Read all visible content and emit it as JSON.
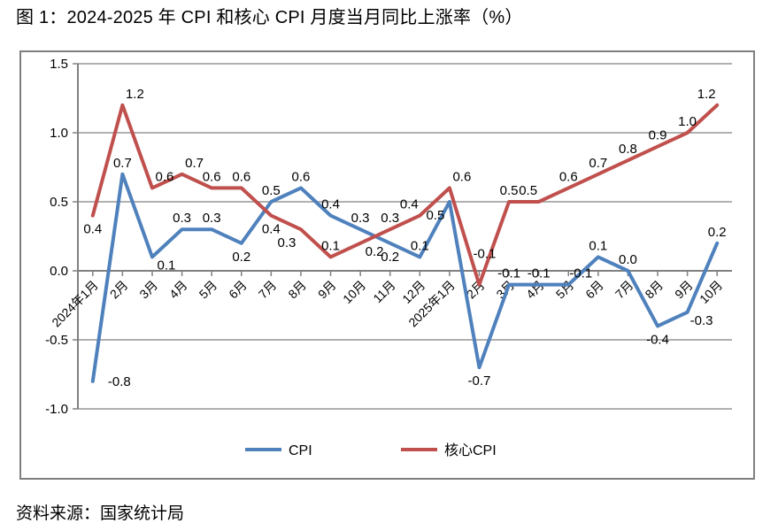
{
  "page": {
    "source": "资料来源：国家统计局"
  },
  "chart_data": {
    "type": "line",
    "title": "图 1：2024-2025 年 CPI 和核心 CPI 月度当月同比上涨率（%）",
    "categories": [
      "2024年1月",
      "2月",
      "3月",
      "4月",
      "5月",
      "6月",
      "7月",
      "8月",
      "9月",
      "10月",
      "11月",
      "12月",
      "2025年1月",
      "2月",
      "3月",
      "4月",
      "5月",
      "6月",
      "7月",
      "8月",
      "9月",
      "10月"
    ],
    "series": [
      {
        "name": "CPI",
        "color": "#4F81BD",
        "values": [
          -0.8,
          0.7,
          0.1,
          0.3,
          0.3,
          0.2,
          0.5,
          0.6,
          0.4,
          0.3,
          0.2,
          0.1,
          0.5,
          -0.7,
          -0.1,
          -0.1,
          -0.1,
          0.1,
          0.0,
          -0.4,
          -0.3,
          0.2
        ],
        "label_side": [
          "right",
          "above",
          "below-right",
          "above",
          "above",
          "below",
          "above",
          "above",
          "above",
          "above",
          "below",
          "above",
          "below-left",
          "below",
          "above",
          "above",
          "above-right",
          "above",
          "above",
          "below",
          "below-right",
          "above"
        ]
      },
      {
        "name": "核心CPI",
        "color": "#C0504D",
        "values": [
          0.4,
          1.2,
          0.6,
          0.7,
          0.6,
          0.6,
          0.4,
          0.3,
          0.1,
          0.2,
          0.3,
          0.4,
          0.6,
          -0.1,
          0.5,
          0.5,
          0.6,
          0.7,
          0.8,
          0.9,
          1.0,
          1.2
        ],
        "label_side": [
          "below",
          "above-right",
          "above-right",
          "above-right",
          "above",
          "above",
          "below",
          "below-left",
          "above",
          "below-right",
          "above",
          "above-left",
          "above-right",
          "far-above",
          "above",
          "above-left",
          "above",
          "above",
          "above",
          "above",
          "above",
          "above-left"
        ]
      }
    ],
    "ylim": [
      -1.0,
      1.5
    ],
    "yticks": [
      1.5,
      1.0,
      0.5,
      0.0,
      -0.5,
      -1.0
    ],
    "grid": true,
    "legend_position": "bottom",
    "colors": {
      "grid": "#969696",
      "axis": "#808080",
      "frame": "#7F7F7F",
      "text": "#000000"
    }
  }
}
